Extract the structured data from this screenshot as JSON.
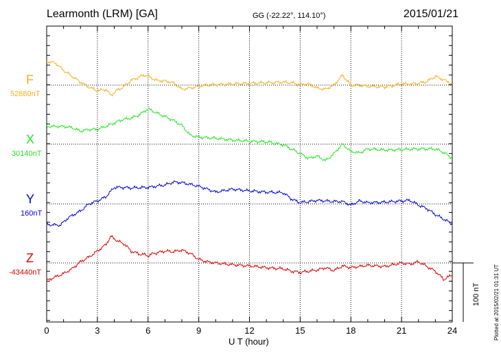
{
  "header": {
    "station": "Learmonth (LRM)  [GA]",
    "coords": "GG (-22.22°, 114.10°)",
    "date": "2015/01/21"
  },
  "footer": {
    "plotted": "Plotted at 2015/02/21 01:31  UT"
  },
  "chart_data": {
    "type": "line",
    "xlabel": "U T (hour)",
    "xlim": [
      0,
      24
    ],
    "xticks": [
      0,
      3,
      6,
      9,
      12,
      15,
      18,
      21,
      24
    ],
    "scale_bar": "100 nT",
    "grid": true,
    "series": [
      {
        "name": "F",
        "baseline_label": "52880nT",
        "color": "#f2b01e",
        "x": [
          0,
          0.5,
          1,
          1.5,
          2,
          2.5,
          3,
          3.5,
          3.8,
          4.2,
          4.5,
          5,
          5.5,
          5.8,
          6,
          6.5,
          7,
          7.5,
          8,
          8.5,
          9,
          9.5,
          10,
          11,
          12,
          13,
          14,
          14.5,
          15,
          15.5,
          16,
          16.5,
          17,
          17.5,
          18,
          18.5,
          19,
          20,
          21,
          21.5,
          22,
          22.5,
          23,
          23.5,
          24
        ],
        "values": [
          40,
          38,
          25,
          15,
          5,
          -3,
          -10,
          -7,
          -17,
          -8,
          -4,
          8,
          14,
          17,
          15,
          8,
          7,
          4,
          -7,
          -5,
          -2,
          0,
          1,
          2,
          3,
          4,
          5,
          4,
          1,
          2,
          -5,
          -7,
          0,
          17,
          0,
          0,
          -2,
          -3,
          2,
          2,
          3,
          6,
          15,
          9,
          2
        ]
      },
      {
        "name": "X",
        "baseline_label": "30140nT",
        "color": "#22e622",
        "x": [
          0,
          1,
          1.5,
          2,
          2.5,
          3,
          3.5,
          4,
          4.5,
          5,
          5.5,
          6,
          6.5,
          7,
          7.5,
          8,
          8.5,
          9,
          10,
          11,
          12,
          13,
          14,
          15,
          15.5,
          16,
          16.5,
          17,
          17.5,
          18,
          18.5,
          19,
          20,
          21,
          22,
          23,
          23.5,
          24
        ],
        "values": [
          30,
          30,
          28,
          22,
          25,
          25,
          30,
          36,
          42,
          44,
          50,
          60,
          53,
          47,
          40,
          32,
          15,
          12,
          10,
          7,
          5,
          4,
          -1,
          -16,
          -24,
          -20,
          -28,
          -16,
          0,
          -12,
          -15,
          -8,
          -10,
          -9,
          -8,
          -8,
          -14,
          -24
        ]
      },
      {
        "name": "Y",
        "baseline_label": "160nT",
        "color": "#0000dd",
        "x": [
          0,
          0.8,
          1.3,
          2,
          2.5,
          3,
          3.5,
          4,
          4.5,
          5,
          6,
          7,
          7.5,
          8,
          9,
          10,
          11,
          12,
          13,
          14,
          14.5,
          15,
          16,
          17,
          17.5,
          18,
          18.5,
          19,
          20,
          21,
          21.5,
          22,
          22.5,
          23,
          23.5,
          24
        ],
        "values": [
          -35,
          -36,
          -23,
          -12,
          0,
          5,
          12,
          28,
          28,
          27,
          28,
          32,
          37,
          36,
          30,
          20,
          25,
          22,
          20,
          19,
          8,
          2,
          6,
          4,
          4,
          -2,
          5,
          2,
          3,
          5,
          6,
          -2,
          -8,
          -18,
          -26,
          -34
        ]
      },
      {
        "name": "Z",
        "baseline_label": "-43440nT",
        "color": "#dd0000",
        "x": [
          0,
          0.5,
          1,
          1.5,
          2,
          2.5,
          3,
          3.5,
          3.8,
          4.2,
          4.6,
          5,
          5.5,
          5.8,
          6,
          6.3,
          7,
          7.5,
          8,
          8.5,
          9,
          9.5,
          10,
          11,
          12,
          13,
          14,
          14.5,
          15,
          16,
          16.5,
          17,
          17.5,
          18,
          19,
          20,
          21,
          21.5,
          22,
          22.5,
          23,
          23.5,
          24
        ],
        "values": [
          -30,
          -24,
          -18,
          -10,
          2,
          10,
          20,
          31,
          45,
          37,
          32,
          20,
          15,
          14,
          12,
          16,
          20,
          19,
          22,
          16,
          6,
          2,
          0,
          -3,
          -5,
          -8,
          -10,
          -14,
          -16,
          -12,
          -8,
          -13,
          -5,
          -8,
          -4,
          -6,
          0,
          -2,
          2,
          -6,
          -14,
          -28,
          -20
        ]
      }
    ]
  }
}
